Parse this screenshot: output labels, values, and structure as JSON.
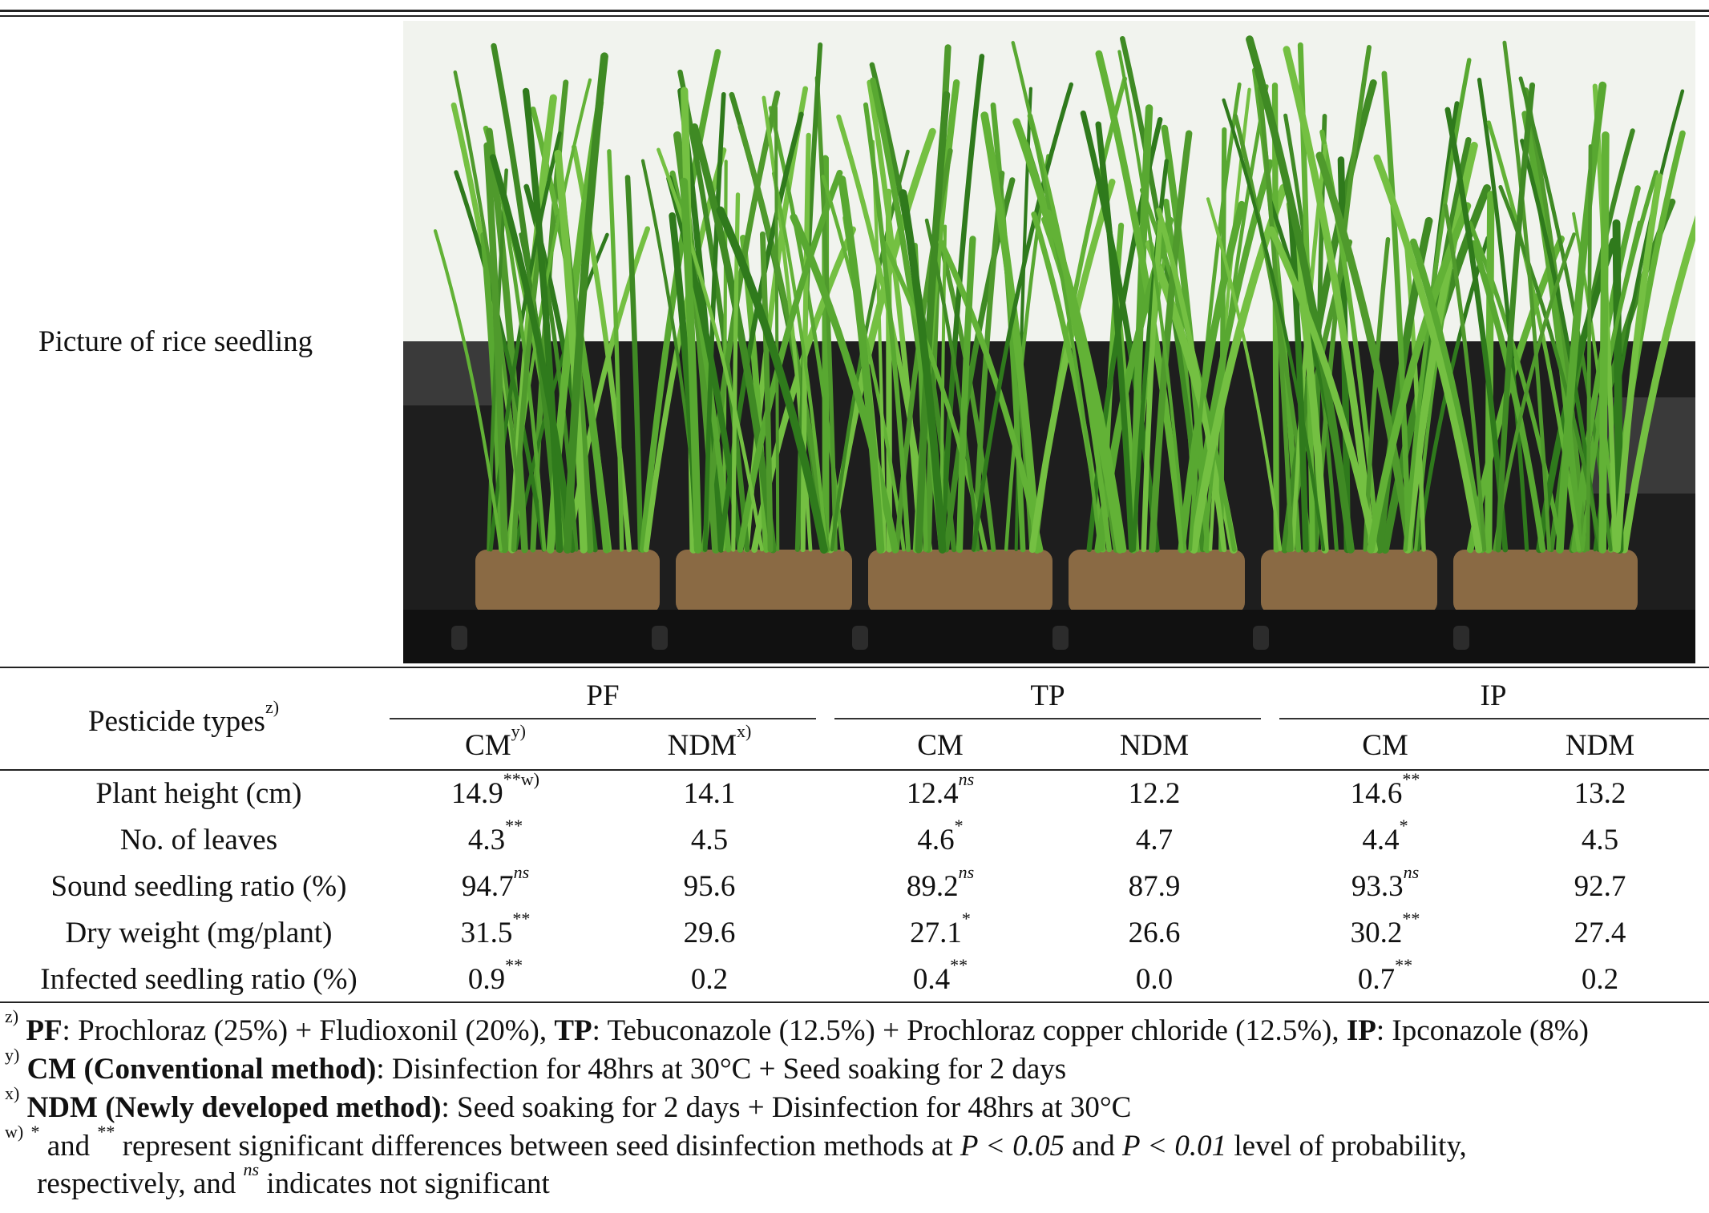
{
  "picture_label": "Picture of rice seedling",
  "photo_icon": "rice-seedling-photo",
  "table": {
    "row_header_label": "Pesticide types",
    "row_header_note": "z)",
    "groups": [
      {
        "name": "PF"
      },
      {
        "name": "TP"
      },
      {
        "name": "IP"
      }
    ],
    "subheaders": [
      {
        "label": "CM",
        "note": "y)"
      },
      {
        "label": "NDM",
        "note": "x)"
      },
      {
        "label": "CM",
        "note": ""
      },
      {
        "label": "NDM",
        "note": ""
      },
      {
        "label": "CM",
        "note": ""
      },
      {
        "label": "NDM",
        "note": ""
      }
    ],
    "rows": [
      {
        "label": "Plant height (cm)",
        "cells": [
          {
            "v": "14.9",
            "s": "**w)"
          },
          {
            "v": "14.1",
            "s": ""
          },
          {
            "v": "12.4",
            "s": "ns"
          },
          {
            "v": "12.2",
            "s": ""
          },
          {
            "v": "14.6",
            "s": "**"
          },
          {
            "v": "13.2",
            "s": ""
          }
        ]
      },
      {
        "label": "No. of leaves",
        "cells": [
          {
            "v": "4.3",
            "s": "**"
          },
          {
            "v": "4.5",
            "s": ""
          },
          {
            "v": "4.6",
            "s": "*"
          },
          {
            "v": "4.7",
            "s": ""
          },
          {
            "v": "4.4",
            "s": "*"
          },
          {
            "v": "4.5",
            "s": ""
          }
        ]
      },
      {
        "label": "Sound seedling ratio (%)",
        "cells": [
          {
            "v": "94.7",
            "s": "ns"
          },
          {
            "v": "95.6",
            "s": ""
          },
          {
            "v": "89.2",
            "s": "ns"
          },
          {
            "v": "87.9",
            "s": ""
          },
          {
            "v": "93.3",
            "s": "ns"
          },
          {
            "v": "92.7",
            "s": ""
          }
        ]
      },
      {
        "label": "Dry weight (mg/plant)",
        "cells": [
          {
            "v": "31.5",
            "s": "**"
          },
          {
            "v": "29.6",
            "s": ""
          },
          {
            "v": "27.1",
            "s": "*"
          },
          {
            "v": "26.6",
            "s": ""
          },
          {
            "v": "30.2",
            "s": "**"
          },
          {
            "v": "27.4",
            "s": ""
          }
        ]
      },
      {
        "label": "Infected seedling ratio (%)",
        "cells": [
          {
            "v": "0.9",
            "s": "**"
          },
          {
            "v": "0.2",
            "s": ""
          },
          {
            "v": "0.4",
            "s": "**"
          },
          {
            "v": "0.0",
            "s": ""
          },
          {
            "v": "0.7",
            "s": "**"
          },
          {
            "v": "0.2",
            "s": ""
          }
        ]
      }
    ]
  },
  "footnotes": {
    "z": {
      "mark": "z)",
      "b1": "PF",
      "t1": ": Prochloraz (25%) + Fludioxonil (20%), ",
      "b2": "TP",
      "t2": ": Tebuconazole (12.5%) + Prochloraz copper chloride (12.5%), ",
      "b3": "IP",
      "t3": ": Ipconazole (8%)"
    },
    "y": {
      "mark": "y)",
      "b": "CM (Conventional method)",
      "t": ": Disinfection for 48hrs at 30°C + Seed soaking for 2 days"
    },
    "x": {
      "mark": "x)",
      "b": "NDM (Newly developed method)",
      "t": ": Seed soaking for 2 days + Disinfection for 48hrs at 30°C"
    },
    "w": {
      "mark": "w)",
      "s1": "*",
      "t1": " and ",
      "s2": "**",
      "t2": " represent significant differences between seed disinfection methods at ",
      "p1": "P < 0.05",
      "t3": " and ",
      "p2": "P < 0.01",
      "t4": " level of probability,",
      "line2a": "respectively, and ",
      "s3": "ns",
      "line2b": " indicates not significant"
    }
  }
}
